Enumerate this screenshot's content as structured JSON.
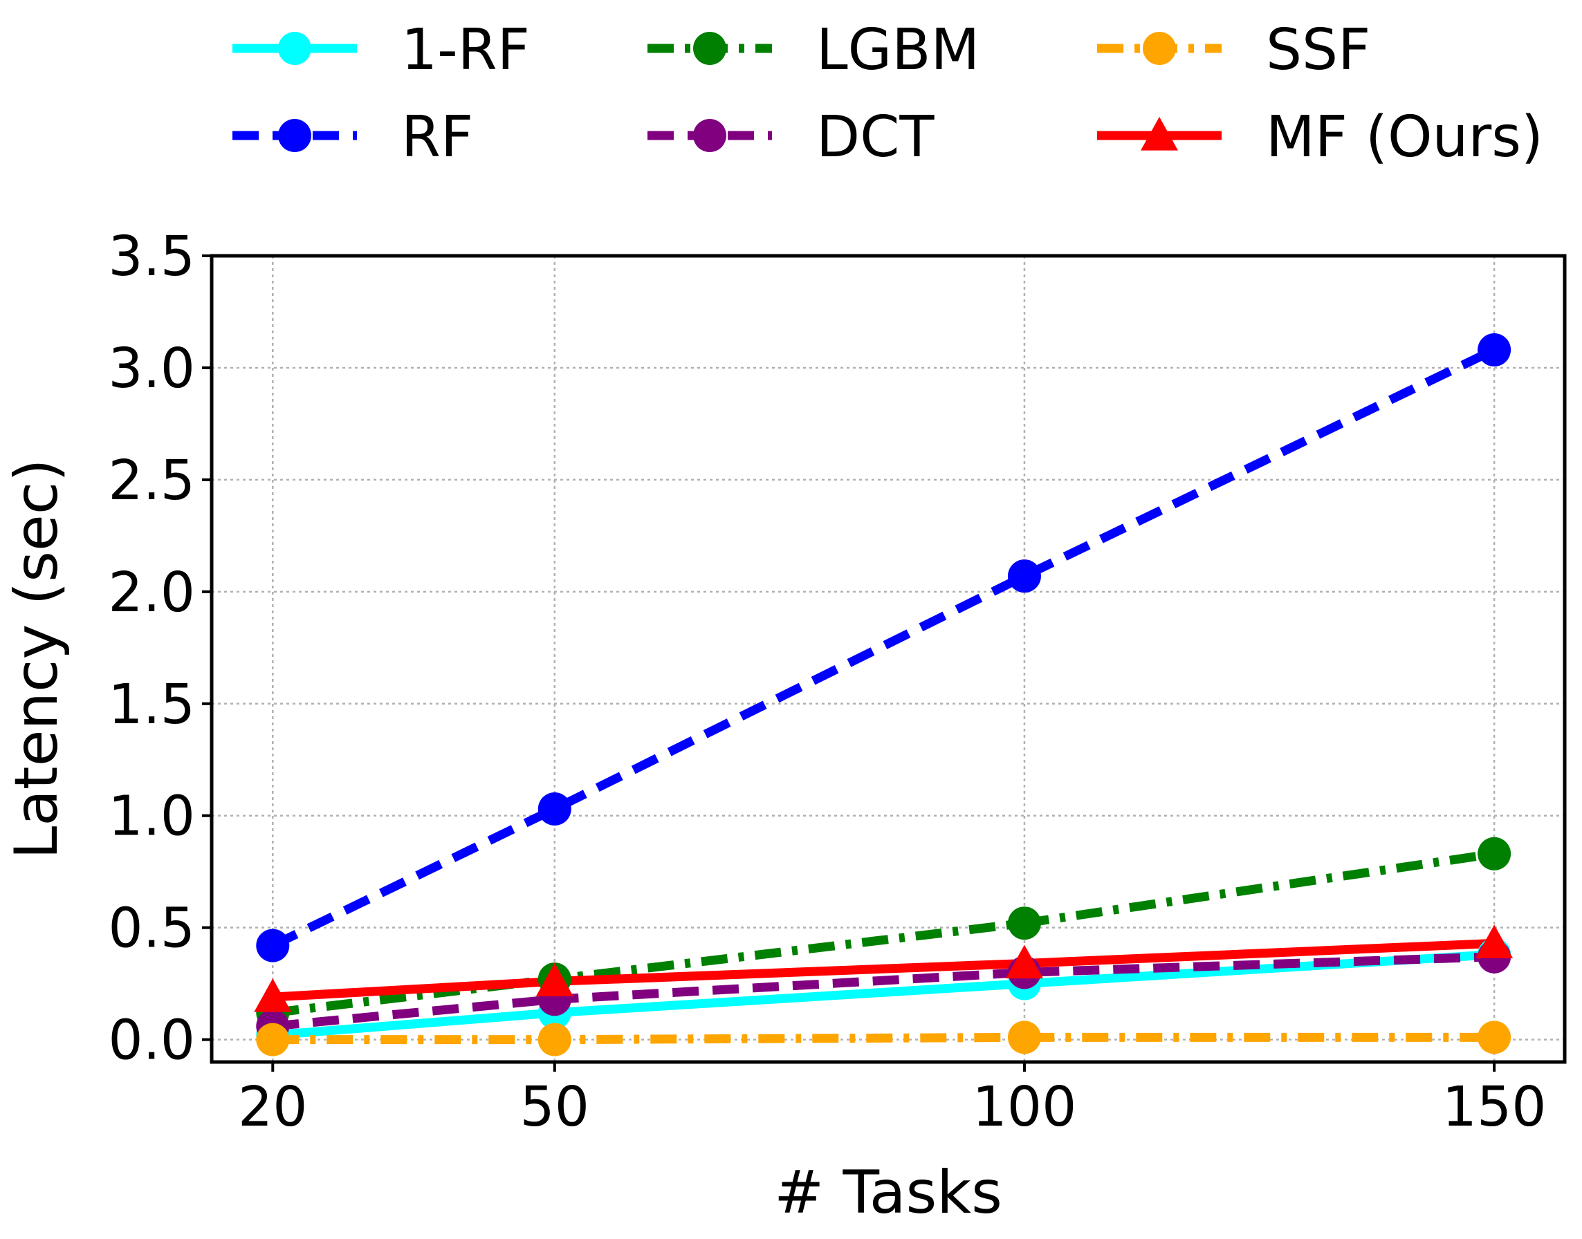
{
  "chart_data": {
    "type": "line",
    "title": "",
    "xlabel": "# Tasks",
    "ylabel": "Latency (sec)",
    "x": [
      20,
      50,
      100,
      150
    ],
    "xticks": [
      "20",
      "50",
      "100",
      "150"
    ],
    "yticks": [
      "0.0",
      "0.5",
      "1.0",
      "1.5",
      "2.0",
      "2.5",
      "3.0",
      "3.5"
    ],
    "xlim": [
      13.5,
      157.5
    ],
    "ylim": [
      -0.1,
      3.5
    ],
    "grid": true,
    "legend_position": "top",
    "series": [
      {
        "name": "1-RF",
        "values": [
          0.02,
          0.12,
          0.25,
          0.38
        ],
        "color": "#00ffff",
        "style": "solid",
        "marker": "circle"
      },
      {
        "name": "RF",
        "values": [
          0.42,
          1.03,
          2.07,
          3.08
        ],
        "color": "#0000ff",
        "style": "dashed",
        "marker": "circle"
      },
      {
        "name": "LGBM",
        "values": [
          0.12,
          0.27,
          0.52,
          0.83
        ],
        "color": "#008000",
        "style": "dashdot",
        "marker": "circle"
      },
      {
        "name": "DCT",
        "values": [
          0.06,
          0.18,
          0.3,
          0.37
        ],
        "color": "#800080",
        "style": "dashed",
        "marker": "circle"
      },
      {
        "name": "SSF",
        "values": [
          0.0,
          0.0,
          0.01,
          0.01
        ],
        "color": "#ffa500",
        "style": "dashdot",
        "marker": "circle"
      },
      {
        "name": "MF (Ours)",
        "values": [
          0.19,
          0.26,
          0.34,
          0.43
        ],
        "color": "#ff0000",
        "style": "solid",
        "marker": "triangle"
      }
    ]
  }
}
